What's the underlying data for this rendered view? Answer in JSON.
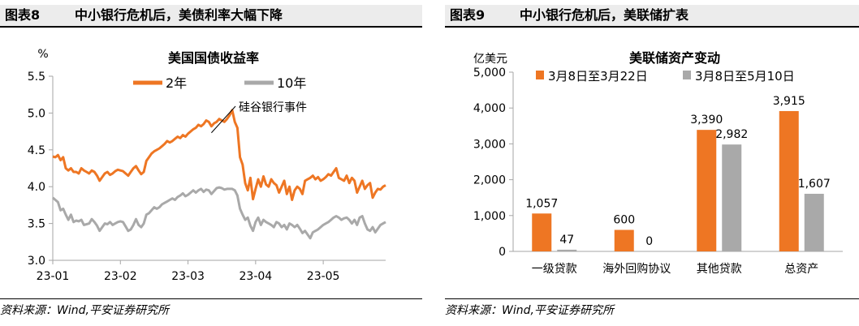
{
  "left": {
    "figure_label": "图表8",
    "figure_title": "中小银行危机后，美债利率大幅下降",
    "source": "资料来源：Wind,平安证券研究所"
  },
  "right": {
    "figure_label": "图表9",
    "figure_title": "中小银行危机后，美联储扩表",
    "source": "资料来源：Wind,平安证券研究所"
  },
  "colors": {
    "orange": "#ee7623",
    "gray": "#a9a9a9",
    "axis": "#a6a6a6"
  },
  "chart_data": [
    {
      "type": "line",
      "title": "美国国债收益率",
      "ylabel": "%",
      "xlabel": "",
      "ylim": [
        3.0,
        5.5
      ],
      "yticks": [
        "3.0",
        "3.5",
        "4.0",
        "4.5",
        "5.0",
        "5.5"
      ],
      "x_range": [
        0,
        128
      ],
      "xticks": [
        {
          "pos": 0,
          "label": "23-01"
        },
        {
          "pos": 26,
          "label": "23-02"
        },
        {
          "pos": 52,
          "label": "23-03"
        },
        {
          "pos": 78,
          "label": "23-04"
        },
        {
          "pos": 104,
          "label": "23-05"
        }
      ],
      "grid": false,
      "legend": "top",
      "annotation": {
        "text": "硅谷银行事件",
        "at_index": 61
      },
      "series": [
        {
          "name": "2年",
          "color": "#ee7623",
          "values": [
            4.41,
            4.4,
            4.43,
            4.36,
            4.4,
            4.25,
            4.22,
            4.25,
            4.2,
            4.2,
            4.18,
            4.25,
            4.22,
            4.2,
            4.18,
            4.22,
            4.2,
            4.15,
            4.08,
            4.13,
            4.18,
            4.2,
            4.16,
            4.18,
            4.21,
            4.23,
            4.22,
            4.21,
            4.18,
            4.15,
            4.2,
            4.25,
            4.28,
            4.22,
            4.17,
            4.2,
            4.35,
            4.4,
            4.45,
            4.48,
            4.5,
            4.52,
            4.55,
            4.58,
            4.62,
            4.6,
            4.62,
            4.65,
            4.68,
            4.66,
            4.7,
            4.68,
            4.72,
            4.75,
            4.78,
            4.8,
            4.84,
            4.82,
            4.85,
            4.9,
            4.88,
            4.82,
            4.86,
            4.88,
            4.92,
            4.9,
            4.88,
            4.92,
            4.97,
            5.04,
            4.88,
            4.8,
            4.4,
            4.3,
            4.05,
            3.95,
            4.12,
            3.83,
            3.97,
            4.1,
            4.0,
            4.14,
            4.03,
            4.0,
            4.1,
            4.05,
            4.02,
            3.92,
            4.0,
            4.08,
            3.9,
            4.0,
            3.82,
            3.95,
            4.0,
            3.97,
            3.9,
            4.08,
            4.1,
            4.12,
            4.15,
            4.1,
            4.13,
            4.08,
            4.1,
            4.13,
            4.17,
            4.15,
            4.2,
            4.25,
            4.12,
            4.1,
            4.08,
            4.15,
            4.05,
            4.12,
            4.08,
            3.92,
            4.0,
            4.08,
            3.97,
            4.02,
            4.05,
            3.85,
            3.92,
            3.97,
            3.96,
            4.0,
            4.02
          ]
        },
        {
          "name": "10年",
          "color": "#a9a9a9",
          "values": [
            3.85,
            3.82,
            3.79,
            3.68,
            3.7,
            3.62,
            3.55,
            3.62,
            3.52,
            3.54,
            3.53,
            3.55,
            3.48,
            3.49,
            3.5,
            3.56,
            3.52,
            3.47,
            3.4,
            3.45,
            3.5,
            3.49,
            3.52,
            3.48,
            3.5,
            3.52,
            3.53,
            3.52,
            3.46,
            3.4,
            3.42,
            3.48,
            3.56,
            3.48,
            3.45,
            3.5,
            3.62,
            3.64,
            3.68,
            3.72,
            3.7,
            3.72,
            3.76,
            3.78,
            3.8,
            3.82,
            3.84,
            3.82,
            3.86,
            3.88,
            3.91,
            3.87,
            3.89,
            3.92,
            3.95,
            3.92,
            3.95,
            3.97,
            3.93,
            3.96,
            3.95,
            3.9,
            3.94,
            3.98,
            3.99,
            3.98,
            3.96,
            3.97,
            3.97,
            3.97,
            3.95,
            3.88,
            3.7,
            3.62,
            3.55,
            3.58,
            3.47,
            3.4,
            3.52,
            3.58,
            3.48,
            3.55,
            3.52,
            3.5,
            3.48,
            3.45,
            3.52,
            3.5,
            3.45,
            3.48,
            3.42,
            3.5,
            3.48,
            3.45,
            3.48,
            3.43,
            3.37,
            3.4,
            3.35,
            3.3,
            3.38,
            3.4,
            3.42,
            3.45,
            3.48,
            3.5,
            3.52,
            3.55,
            3.58,
            3.6,
            3.58,
            3.55,
            3.57,
            3.58,
            3.55,
            3.5,
            3.55,
            3.48,
            3.58,
            3.6,
            3.5,
            3.42,
            3.4,
            3.45,
            3.38,
            3.43,
            3.48,
            3.5,
            3.52
          ]
        }
      ]
    },
    {
      "type": "bar",
      "title": "美联储资产变动",
      "ylabel": "亿美元",
      "xlabel": "",
      "ylim": [
        0,
        5000
      ],
      "yticks": [
        "0",
        "1,000",
        "2,000",
        "3,000",
        "4,000",
        "5,000"
      ],
      "categories": [
        "一级贷款",
        "海外回购协议",
        "其他贷款",
        "总资产"
      ],
      "legend": "top",
      "grid": false,
      "series": [
        {
          "name": "3月8日至3月22日",
          "color": "#ee7623",
          "values": [
            1057,
            600,
            3390,
            3915
          ],
          "labels": [
            "1,057",
            "600",
            "3,390",
            "3,915"
          ]
        },
        {
          "name": "3月8日至5月10日",
          "color": "#a9a9a9",
          "values": [
            47,
            0,
            2982,
            1607
          ],
          "labels": [
            "47",
            "0",
            "2,982",
            "1,607"
          ]
        }
      ]
    }
  ]
}
